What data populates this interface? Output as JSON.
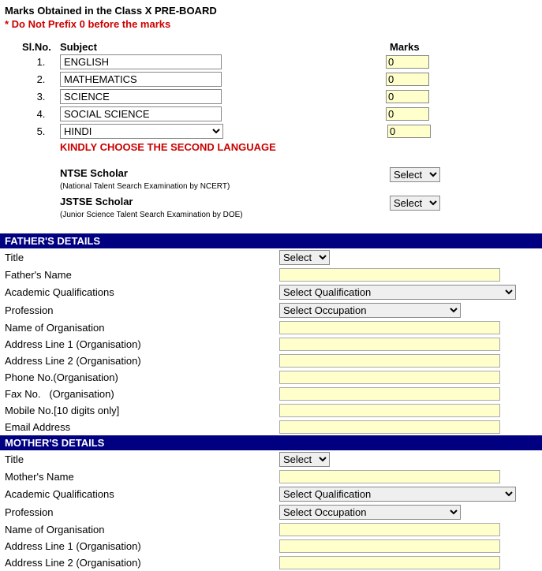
{
  "heading": "Marks Obtained in the Class X PRE-BOARD",
  "warning": "* Do Not Prefix 0 before the marks",
  "columns": {
    "slno": "Sl.No.",
    "subject": "Subject",
    "marks": "Marks"
  },
  "subjects": [
    {
      "no": "1.",
      "name": "ENGLISH",
      "marks": "0"
    },
    {
      "no": "2.",
      "name": "MATHEMATICS",
      "marks": "0"
    },
    {
      "no": "3.",
      "name": "SCIENCE",
      "marks": "0"
    },
    {
      "no": "4.",
      "name": "SOCIAL SCIENCE",
      "marks": "0"
    }
  ],
  "row5": {
    "no": "5.",
    "selected": "HINDI",
    "marks": "0"
  },
  "lang_note": "KINDLY CHOOSE THE SECOND LANGUAGE",
  "scholars": {
    "ntse": {
      "title": "NTSE Scholar",
      "sub": "(National Talent Search Examination by NCERT)",
      "value": "Select"
    },
    "jstse": {
      "title": "JSTSE Scholar",
      "sub": "(Junior Science Talent Search Examination by DOE)",
      "value": "Select"
    }
  },
  "father": {
    "section": "FATHER'S DETAILS",
    "title_label": "Title",
    "title_value": "Select",
    "name_label": "Father's Name",
    "name_value": "",
    "qual_label": "Academic Qualifications",
    "qual_value": "Select Qualification",
    "prof_label": "Profession",
    "prof_value": "Select Occupation",
    "org_label": "Name of Organisation",
    "org_value": "",
    "addr1_label": "Address Line 1 (Organisation)",
    "addr1_value": "",
    "addr2_label": "Address Line 2 (Organisation)",
    "addr2_value": "",
    "phone_label": "Phone No.(Organisation)",
    "phone_value": "",
    "fax_label": "Fax No.   (Organisation)",
    "fax_value": "",
    "mobile_label": "Mobile No.[10 digits only]",
    "mobile_value": "",
    "email_label": "Email Address",
    "email_value": ""
  },
  "mother": {
    "section": "MOTHER'S DETAILS",
    "title_label": "Title",
    "title_value": "Select",
    "name_label": "Mother's Name",
    "name_value": "",
    "qual_label": "Academic Qualifications",
    "qual_value": "Select Qualification",
    "prof_label": "Profession",
    "prof_value": "Select Occupation",
    "org_label": "Name of Organisation",
    "org_value": "",
    "addr1_label": "Address Line 1 (Organisation)",
    "addr1_value": "",
    "addr2_label": "Address Line 2 (Organisation)",
    "addr2_value": ""
  }
}
